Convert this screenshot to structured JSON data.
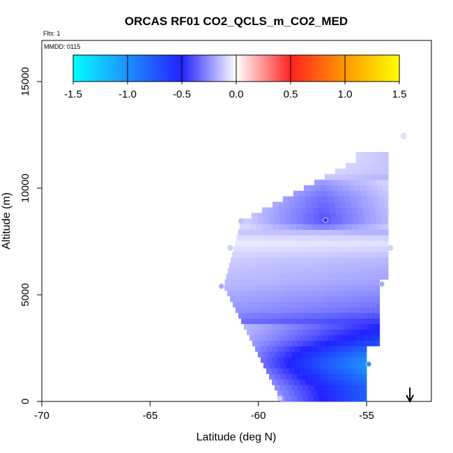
{
  "chart_data": {
    "type": "heatmap",
    "title": "ORCAS RF01 CO2_QCLS_m_CO2_MED",
    "flights_label": "Flts: 1",
    "date_label": "MMDD: 0115",
    "xlabel": "Latitude (deg N)",
    "ylabel": "Altitude (m)",
    "xlim": [
      -70,
      -52
    ],
    "ylim": [
      0,
      16500
    ],
    "x_ticks": [
      -70,
      -65,
      -60,
      -55
    ],
    "x_tick_labels": [
      "-70",
      "-65",
      "-60",
      "-55"
    ],
    "y_ticks": [
      0,
      5000,
      10000,
      15000
    ],
    "y_tick_labels": [
      "0",
      "5000",
      "10000",
      "15000"
    ],
    "colorbar": {
      "range": [
        -1.5,
        1.5
      ],
      "ticks": [
        -1.5,
        -1.0,
        -0.5,
        0.0,
        0.5,
        1.0,
        1.5
      ],
      "tick_labels": [
        "-1.5",
        "-1.0",
        "-0.5",
        "0.0",
        "0.5",
        "1.0",
        "1.5"
      ],
      "stops": [
        {
          "v": -1.5,
          "c": "#00ffff"
        },
        {
          "v": -1.0,
          "c": "#1e90ff"
        },
        {
          "v": -0.5,
          "c": "#2222ff"
        },
        {
          "v": 0.0,
          "c": "#ffffff"
        },
        {
          "v": 0.5,
          "c": "#ff2222"
        },
        {
          "v": 1.0,
          "c": "#ff9900"
        },
        {
          "v": 1.5,
          "c": "#ffff00"
        }
      ]
    },
    "field": {
      "lat_range": [
        -61.6,
        -54.4
      ],
      "alt_range": [
        0,
        11500
      ],
      "bands": [
        {
          "alt": 600,
          "value": -0.7
        },
        {
          "alt": 1800,
          "value": -0.95
        },
        {
          "alt": 3000,
          "value": -0.55
        },
        {
          "alt": 4300,
          "value": -0.3
        },
        {
          "alt": 5500,
          "value": -0.2
        },
        {
          "alt": 6600,
          "value": -0.15
        },
        {
          "alt": 7500,
          "value": -0.05
        },
        {
          "alt": 8500,
          "value": -0.3
        },
        {
          "alt": 9600,
          "value": -0.25
        },
        {
          "alt": 10800,
          "value": -0.12
        }
      ]
    },
    "observations": [
      {
        "lat": -59.0,
        "alt": 150,
        "value": -0.1
      },
      {
        "lat": -54.9,
        "alt": 1750,
        "value": -1.0
      },
      {
        "lat": -61.7,
        "alt": 5400,
        "value": -0.2
      },
      {
        "lat": -54.3,
        "alt": 5500,
        "value": -0.2
      },
      {
        "lat": -61.3,
        "alt": 7200,
        "value": -0.1
      },
      {
        "lat": -53.9,
        "alt": 7200,
        "value": -0.1
      },
      {
        "lat": -60.8,
        "alt": 8450,
        "value": -0.15
      },
      {
        "lat": -56.9,
        "alt": 8500,
        "value": -0.45
      },
      {
        "lat": -53.3,
        "alt": 12450,
        "value": -0.05
      }
    ],
    "arrow": {
      "lat": -53.0,
      "direction": "down"
    }
  }
}
